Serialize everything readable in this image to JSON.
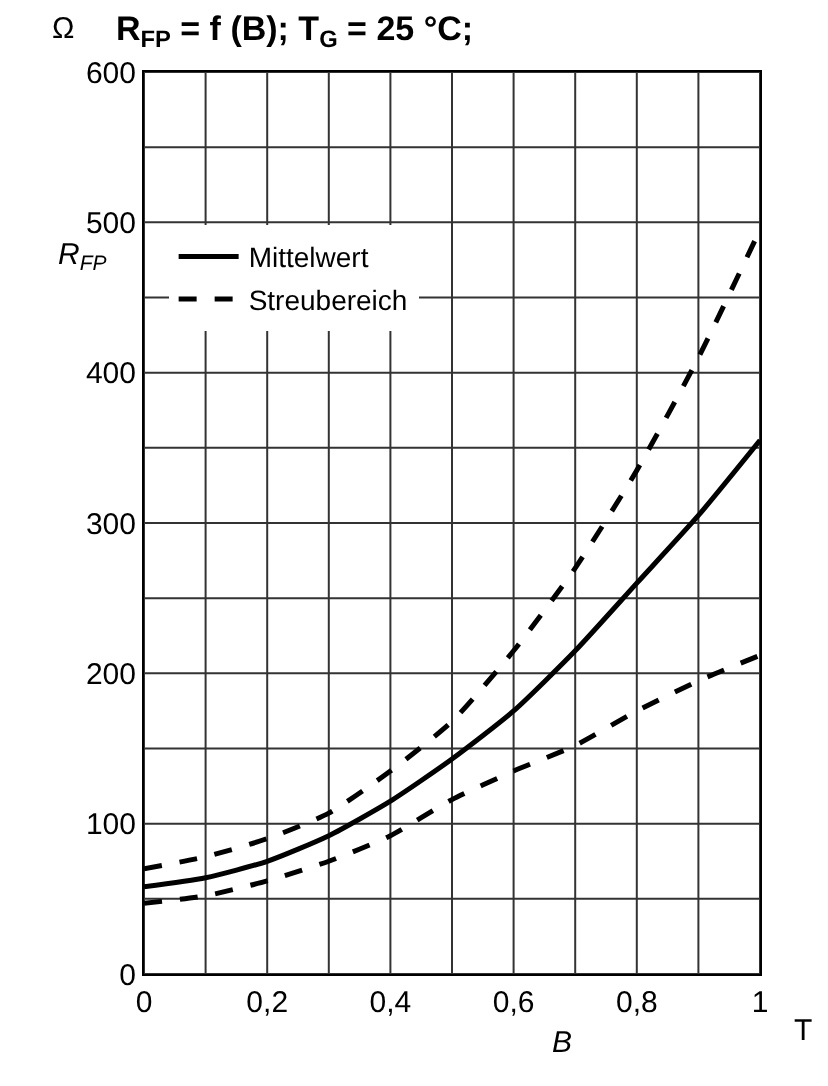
{
  "chart_data": {
    "type": "line",
    "title": "R$_{FP}$ = f (B); T$_{G}$ = 25 °C;",
    "xlabel": "B",
    "ylabel": "R$_{FP}$",
    "annotations": [
      "Ω",
      "T"
    ],
    "x": [
      0,
      0.1,
      0.2,
      0.3,
      0.4,
      0.5,
      0.6,
      0.7,
      0.8,
      0.9,
      1
    ],
    "series": [
      {
        "name": "Mittelwert",
        "color": "#000000",
        "line_style": "solid",
        "values": [
          58,
          64,
          75,
          92,
          115,
          143,
          175,
          215,
          260,
          305,
          355
        ]
      },
      {
        "name": "Streubereich",
        "color": "#000000",
        "line_style": "dashed",
        "values": [
          70,
          78,
          90,
          107,
          135,
          168,
          215,
          270,
          335,
          410,
          495
        ]
      },
      {
        "color": "#000000",
        "line_style": "dashed",
        "values": [
          47,
          52,
          62,
          75,
          92,
          116,
          135,
          152,
          175,
          195,
          212
        ]
      }
    ],
    "xlim": [
      0,
      1
    ],
    "xticks": [
      {
        "value": 0,
        "label": "0"
      },
      {
        "value": 0.2,
        "label": "0,2"
      },
      {
        "value": 0.4,
        "label": "0,4"
      },
      {
        "value": 0.6,
        "label": "0,6"
      },
      {
        "value": 0.8,
        "label": "0,8"
      },
      {
        "value": 1,
        "label": "1"
      }
    ],
    "ylim": [
      0,
      600
    ],
    "yticks": [
      0,
      100,
      200,
      300,
      400,
      500,
      600
    ],
    "grid": true,
    "legend": "top left",
    "marker": "none"
  }
}
